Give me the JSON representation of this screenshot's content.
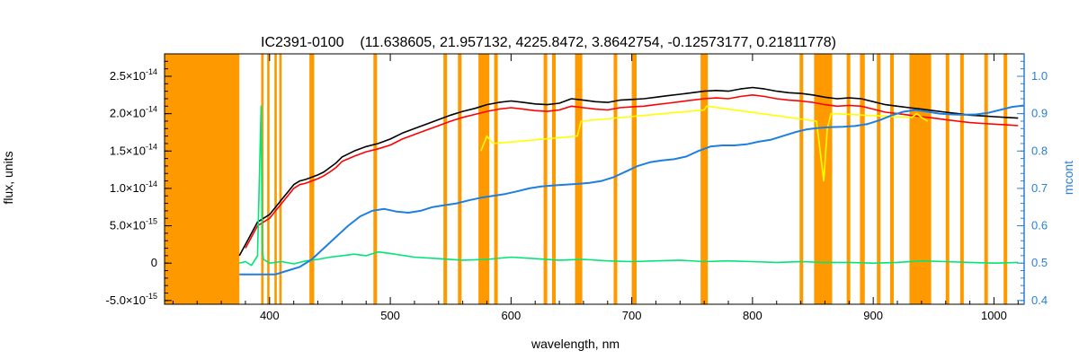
{
  "chart_data": {
    "type": "line",
    "title": "IC2391-0100    (11.638605, 21.957132, 4225.8472, 3.8642754, -0.12573177, 0.21811778)",
    "xlabel": "wavelength, nm",
    "ylabel": "flux, units",
    "y2label": "mcont",
    "xlim": [
      313,
      1025
    ],
    "ylim": [
      -5.5e-15,
      2.8e-14
    ],
    "y2lim": [
      0.39,
      1.06
    ],
    "x_ticks": [
      400,
      500,
      600,
      700,
      800,
      900,
      1000
    ],
    "y_ticks": [
      -5e-15,
      0,
      5e-15,
      1e-14,
      1.5e-14,
      2e-14,
      2.5e-14
    ],
    "y_tick_labels": [
      {
        "mant": "-5.0×10",
        "exp": "-15"
      },
      {
        "mant": "0",
        "exp": ""
      },
      {
        "mant": "5.0×10",
        "exp": "-15"
      },
      {
        "mant": "1.0×10",
        "exp": "-14"
      },
      {
        "mant": "1.5×10",
        "exp": "-14"
      },
      {
        "mant": "2.0×10",
        "exp": "-14"
      },
      {
        "mant": "2.5×10",
        "exp": "-14"
      }
    ],
    "y2_ticks": [
      0.4,
      0.5,
      0.6,
      0.7,
      0.8,
      0.9,
      1.0
    ],
    "y2_tick_labels": [
      "0.4",
      "0.5",
      "0.6",
      "0.7",
      "0.8",
      "0.9",
      "1.0"
    ],
    "masked_regions": [
      [
        313,
        375
      ],
      [
        393,
        395
      ],
      [
        398,
        400
      ],
      [
        404,
        406
      ],
      [
        408,
        410
      ],
      [
        433,
        437
      ],
      [
        486,
        489
      ],
      [
        544,
        547
      ],
      [
        556,
        559
      ],
      [
        573,
        582
      ],
      [
        586,
        589
      ],
      [
        627,
        630
      ],
      [
        634,
        637
      ],
      [
        653,
        659
      ],
      [
        685,
        688
      ],
      [
        700,
        704
      ],
      [
        757,
        763
      ],
      [
        839,
        842
      ],
      [
        851,
        866
      ],
      [
        878,
        881
      ],
      [
        889,
        893
      ],
      [
        903,
        906
      ],
      [
        914,
        917
      ],
      [
        930,
        948
      ],
      [
        960,
        963
      ],
      [
        972,
        975
      ],
      [
        992,
        995
      ],
      [
        1008,
        1011
      ]
    ],
    "series": [
      {
        "color": "#000000",
        "axis": "left",
        "x": [
          375,
          380,
          385,
          390,
          395,
          400,
          405,
          410,
          415,
          420,
          425,
          430,
          435,
          440,
          445,
          450,
          455,
          460,
          470,
          480,
          490,
          500,
          510,
          520,
          530,
          540,
          550,
          560,
          570,
          580,
          590,
          600,
          610,
          620,
          630,
          640,
          650,
          660,
          670,
          680,
          690,
          700,
          710,
          720,
          730,
          740,
          750,
          760,
          770,
          780,
          790,
          800,
          810,
          820,
          830,
          840,
          850,
          860,
          870,
          880,
          890,
          900,
          910,
          920,
          930,
          940,
          950,
          960,
          970,
          980,
          990,
          1000,
          1010,
          1020
        ],
        "y": [
          1e-15,
          2.5e-15,
          4e-15,
          5.5e-15,
          6e-15,
          6.5e-15,
          7.5e-15,
          8.5e-15,
          9.5e-15,
          1.05e-14,
          1.1e-14,
          1.12e-14,
          1.15e-14,
          1.18e-14,
          1.22e-14,
          1.28e-14,
          1.34e-14,
          1.42e-14,
          1.5e-14,
          1.56e-14,
          1.6e-14,
          1.66e-14,
          1.74e-14,
          1.8e-14,
          1.86e-14,
          1.92e-14,
          1.98e-14,
          2.03e-14,
          2.07e-14,
          2.12e-14,
          2.15e-14,
          2.17e-14,
          2.15e-14,
          2.13e-14,
          2.12e-14,
          2.14e-14,
          2.2e-14,
          2.18e-14,
          2.16e-14,
          2.15e-14,
          2.18e-14,
          2.19e-14,
          2.2e-14,
          2.22e-14,
          2.24e-14,
          2.26e-14,
          2.28e-14,
          2.3e-14,
          2.31e-14,
          2.3e-14,
          2.33e-14,
          2.35e-14,
          2.33e-14,
          2.3e-14,
          2.28e-14,
          2.27e-14,
          2.25e-14,
          2.22e-14,
          2.2e-14,
          2.21e-14,
          2.2e-14,
          2.16e-14,
          2.12e-14,
          2.1e-14,
          2.08e-14,
          2.06e-14,
          2.04e-14,
          2.02e-14,
          2e-14,
          1.98e-14,
          1.97e-14,
          1.96e-14,
          1.95e-14,
          1.94e-14
        ]
      },
      {
        "color": "#ff0000",
        "axis": "left",
        "x": [
          380,
          385,
          390,
          395,
          400,
          405,
          410,
          415,
          420,
          425,
          430,
          435,
          440,
          445,
          450,
          455,
          460,
          470,
          480,
          490,
          500,
          510,
          520,
          530,
          540,
          550,
          560,
          570,
          580,
          590,
          600,
          610,
          620,
          630,
          640,
          650,
          660,
          670,
          680,
          690,
          700,
          710,
          720,
          730,
          740,
          750,
          760,
          770,
          780,
          790,
          800,
          810,
          820,
          830,
          840,
          850,
          860,
          870,
          880,
          890,
          900,
          910,
          920,
          930,
          940,
          950,
          960,
          970,
          980,
          990,
          1000,
          1010,
          1020
        ],
        "y": [
          2e-15,
          3.5e-15,
          5e-15,
          5.5e-15,
          6e-15,
          7e-15,
          8e-15,
          9e-15,
          1e-14,
          1.05e-14,
          1.07e-14,
          1.1e-14,
          1.13e-14,
          1.17e-14,
          1.22e-14,
          1.28e-14,
          1.36e-14,
          1.43e-14,
          1.49e-14,
          1.53e-14,
          1.58e-14,
          1.66e-14,
          1.72e-14,
          1.78e-14,
          1.84e-14,
          1.9e-14,
          1.95e-14,
          1.99e-14,
          2.03e-14,
          2.06e-14,
          2.08e-14,
          2.06e-14,
          2.04e-14,
          2.03e-14,
          2.05e-14,
          2.1e-14,
          2.08e-14,
          2.06e-14,
          2.05e-14,
          2.08e-14,
          2.09e-14,
          2.1e-14,
          2.12e-14,
          2.14e-14,
          2.16e-14,
          2.18e-14,
          2.2e-14,
          2.21e-14,
          2.2e-14,
          2.23e-14,
          2.25e-14,
          2.23e-14,
          2.2e-14,
          2.18e-14,
          2.17e-14,
          2.15e-14,
          2.12e-14,
          2.1e-14,
          2.11e-14,
          2.1e-14,
          2.06e-14,
          2.02e-14,
          2e-14,
          1.98e-14,
          1.96e-14,
          1.94e-14,
          1.92e-14,
          1.9e-14,
          1.88e-14,
          1.87e-14,
          1.86e-14,
          1.85e-14,
          1.84e-14
        ]
      },
      {
        "color": "#00e676",
        "axis": "left",
        "x": [
          375,
          380,
          385,
          390,
          393,
          394,
          395,
          400,
          410,
          420,
          430,
          440,
          450,
          460,
          470,
          480,
          490,
          500,
          520,
          540,
          560,
          580,
          600,
          620,
          640,
          660,
          680,
          700,
          720,
          740,
          760,
          780,
          800,
          820,
          840,
          860,
          880,
          900,
          920,
          940,
          960,
          980,
          1000,
          1020
        ],
        "y": [
          0,
          2e-16,
          -3e-16,
          1e-15,
          2.1e-14,
          1.5e-15,
          5e-16,
          0,
          2e-16,
          -1e-16,
          3e-16,
          5e-16,
          8e-16,
          1e-15,
          1.2e-15,
          1e-15,
          1.5e-15,
          1.3e-15,
          8e-16,
          6e-16,
          4e-16,
          5e-16,
          8e-16,
          6e-16,
          4e-16,
          5e-16,
          3e-16,
          2e-16,
          3e-16,
          4e-16,
          2e-16,
          3e-16,
          2e-16,
          1e-16,
          2e-16,
          1e-16,
          1e-16,
          0,
          1e-16,
          3e-16,
          2e-16,
          1e-16,
          0,
          1e-16
        ]
      },
      {
        "color": "#ffff00",
        "axis": "left",
        "x": [
          575,
          580,
          585,
          655,
          658,
          760,
          762,
          853,
          856,
          859,
          862,
          865,
          932,
          936,
          940,
          945
        ],
        "y": [
          1.5e-14,
          1.7e-14,
          1.6e-14,
          1.7e-14,
          1.9e-14,
          2.05e-14,
          2.1e-14,
          1.9e-14,
          1.5e-14,
          1.1e-14,
          1.8e-14,
          2e-14,
          1.95e-14,
          2e-14,
          1.95e-14,
          1.9e-14
        ]
      },
      {
        "color": "#1e7fe0",
        "axis": "right",
        "x": [
          375,
          385,
          395,
          405,
          415,
          425,
          435,
          445,
          455,
          465,
          475,
          485,
          495,
          505,
          515,
          525,
          535,
          545,
          555,
          565,
          575,
          585,
          595,
          605,
          615,
          625,
          635,
          645,
          655,
          665,
          675,
          685,
          695,
          705,
          715,
          725,
          735,
          745,
          755,
          765,
          775,
          785,
          795,
          805,
          815,
          825,
          835,
          845,
          855,
          865,
          875,
          885,
          895,
          905,
          915,
          925,
          935,
          945,
          955,
          965,
          975,
          985,
          995,
          1005,
          1015,
          1025
        ],
        "y": [
          0.47,
          0.47,
          0.47,
          0.47,
          0.48,
          0.49,
          0.51,
          0.54,
          0.57,
          0.6,
          0.625,
          0.64,
          0.645,
          0.638,
          0.635,
          0.64,
          0.65,
          0.655,
          0.66,
          0.668,
          0.675,
          0.68,
          0.685,
          0.692,
          0.7,
          0.705,
          0.708,
          0.71,
          0.712,
          0.715,
          0.72,
          0.73,
          0.745,
          0.76,
          0.77,
          0.775,
          0.778,
          0.785,
          0.8,
          0.812,
          0.815,
          0.815,
          0.818,
          0.825,
          0.83,
          0.84,
          0.85,
          0.858,
          0.862,
          0.864,
          0.865,
          0.867,
          0.872,
          0.882,
          0.895,
          0.905,
          0.91,
          0.905,
          0.9,
          0.898,
          0.897,
          0.898,
          0.902,
          0.91,
          0.918,
          0.922
        ]
      }
    ]
  }
}
